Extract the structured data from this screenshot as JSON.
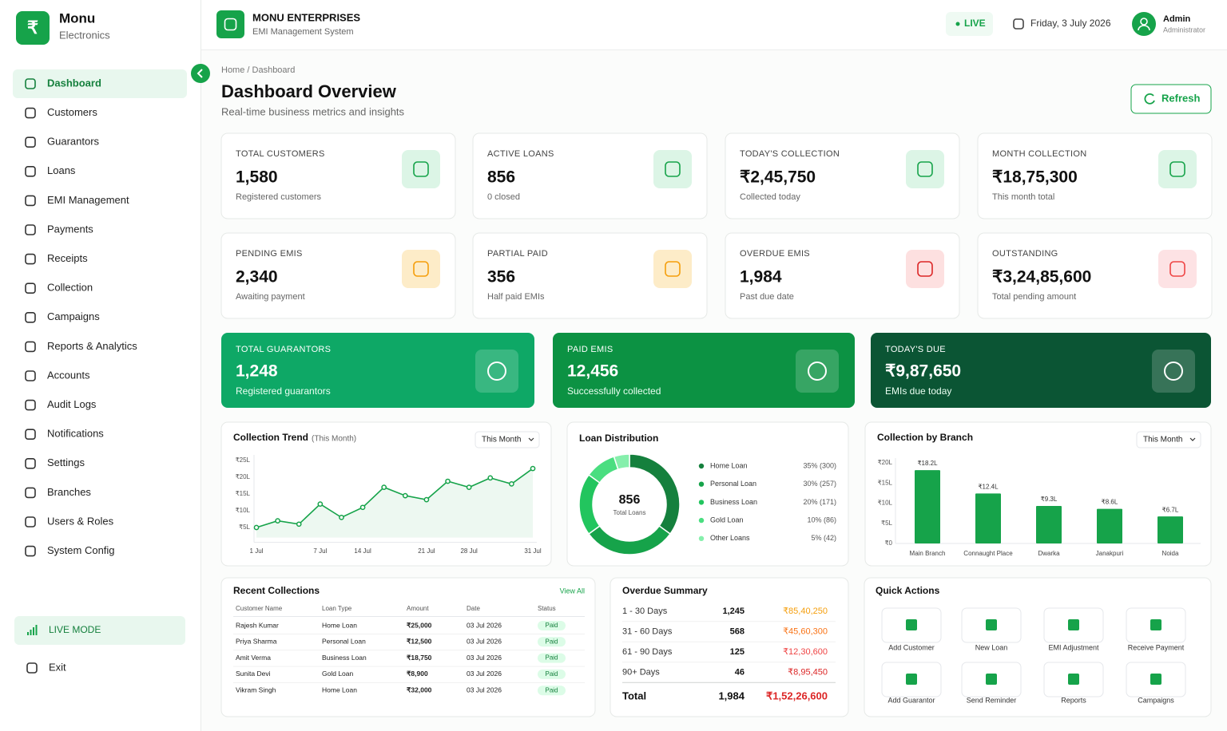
{
  "sidebar": {
    "logo_symbol": "₹",
    "brand": "Monu",
    "tagline": "Electronics",
    "nav": [
      "Dashboard",
      "Customers",
      "Guarantors",
      "Loans",
      "EMI Management",
      "Payments",
      "Receipts",
      "Collection",
      "Campaigns",
      "Reports & Analytics",
      "Accounts",
      "Audit Logs",
      "Notifications",
      "Settings",
      "Branches",
      "Users & Roles",
      "System Config"
    ],
    "active_index": 0,
    "live_mode": "LIVE MODE",
    "exit": "Exit"
  },
  "header": {
    "company": "MONU ENTERPRISES",
    "system": "EMI Management System",
    "live": "LIVE",
    "date": "Friday, 3 July 2026",
    "user": "Admin",
    "role": "Administrator"
  },
  "page": {
    "breadcrumb": "Home / Dashboard",
    "title": "Dashboard Overview",
    "subtitle": "Real-time business metrics and insights",
    "refresh": "Refresh"
  },
  "stats": [
    {
      "label": "TOTAL CUSTOMERS",
      "value": "1,580",
      "note": "Registered customers",
      "icon_color": "#16a34a",
      "icon_bg": "#dcf5e6"
    },
    {
      "label": "ACTIVE LOANS",
      "value": "856",
      "note": "0 closed",
      "icon_color": "#16a34a",
      "icon_bg": "#dcf5e6"
    },
    {
      "label": "TODAY'S COLLECTION",
      "value": "₹2,45,750",
      "note": "Collected today",
      "icon_color": "#16a34a",
      "icon_bg": "#dcf5e6"
    },
    {
      "label": "MONTH COLLECTION",
      "value": "₹18,75,300",
      "note": "This month total",
      "icon_color": "#16a34a",
      "icon_bg": "#dcf5e6"
    },
    {
      "label": "PENDING EMIS",
      "value": "2,340",
      "note": "Awaiting payment",
      "icon_color": "#f59e0b",
      "icon_bg": "#fdecc8"
    },
    {
      "label": "PARTIAL PAID",
      "value": "356",
      "note": "Half paid EMIs",
      "icon_color": "#f59e0b",
      "icon_bg": "#fdecc8"
    },
    {
      "label": "OVERDUE EMIS",
      "value": "1,984",
      "note": "Past due date",
      "icon_color": "#dc2626",
      "icon_bg": "#fde0e0"
    },
    {
      "label": "OUTSTANDING",
      "value": "₹3,24,85,600",
      "note": "Total pending amount",
      "icon_color": "#ef4444",
      "icon_bg": "#fde2e4"
    }
  ],
  "highlights": [
    {
      "label": "TOTAL GUARANTORS",
      "value": "1,248",
      "note": "Registered guarantors",
      "color": "#0ea866"
    },
    {
      "label": "PAID EMIS",
      "value": "12,456",
      "note": "Successfully collected",
      "color": "#0c9243"
    },
    {
      "label": "TODAY'S DUE",
      "value": "₹9,87,650",
      "note": "EMIs due today",
      "color": "#0b5534"
    }
  ],
  "chart_data": [
    {
      "type": "line",
      "title": "Collection Trend",
      "subtitle": "(This Month)",
      "filter": "This Month",
      "categories": [
        "1 Jul",
        null,
        null,
        "7 Jul",
        null,
        "14 Jul",
        null,
        null,
        "21 Jul",
        null,
        "28 Jul",
        null,
        null,
        "31 Jul"
      ],
      "values": [
        5,
        7,
        6,
        12,
        8,
        11,
        17,
        14.5,
        13.3,
        18.8,
        17,
        19.8,
        18,
        22.6
      ],
      "color": "#16a34a",
      "ylim": [
        2,
        25
      ],
      "yticks": [
        {
          "value": 5,
          "label": "₹5L"
        },
        {
          "value": 10,
          "label": "₹10L"
        },
        {
          "value": 15,
          "label": "₹15L"
        },
        {
          "value": 20,
          "label": "₹20L"
        },
        {
          "value": 25,
          "label": "₹25L"
        }
      ],
      "grid": false
    },
    {
      "type": "pie",
      "title": "Loan Distribution",
      "center_value": "856",
      "center_label": "Total Loans",
      "categories": [
        "Home Loan",
        "Personal Loan",
        "Business Loan",
        "Gold Loan",
        "Other Loans"
      ],
      "values": [
        35,
        30,
        20,
        10,
        5
      ],
      "value_labels": [
        "35% (300)",
        "30% (257)",
        "20% (171)",
        "10% (86)",
        "5% (42)"
      ],
      "colors": [
        "#15803d",
        "#16a34a",
        "#22c55e",
        "#4ade80",
        "#86efac"
      ]
    },
    {
      "type": "bar",
      "title": "Collection by Branch",
      "filter": "This Month",
      "categories": [
        "Main Branch",
        "Connaught Place",
        "Dwarka",
        "Janakpuri",
        "Noida"
      ],
      "values": [
        18.2,
        12.4,
        9.3,
        8.6,
        6.7
      ],
      "value_labels": [
        "₹18.2L",
        "₹12.4L",
        "₹9.3L",
        "₹8.6L",
        "₹6.7L"
      ],
      "color": "#16a34a",
      "ylim": [
        0,
        20
      ],
      "yticks": [
        {
          "value": 0,
          "label": "₹0"
        },
        {
          "value": 5,
          "label": "₹5L"
        },
        {
          "value": 10,
          "label": "₹10L"
        },
        {
          "value": 15,
          "label": "₹15L"
        },
        {
          "value": 20,
          "label": "₹20L"
        }
      ],
      "grid": false
    }
  ],
  "recent_collections": {
    "title": "Recent Collections",
    "view_all": "View All",
    "columns": [
      "Customer Name",
      "Loan Type",
      "Amount",
      "Date",
      "Status"
    ],
    "rows": [
      [
        "Rajesh Kumar",
        "Home Loan",
        "₹25,000",
        "03 Jul 2026",
        "Paid"
      ],
      [
        "Priya Sharma",
        "Personal Loan",
        "₹12,500",
        "03 Jul 2026",
        "Paid"
      ],
      [
        "Amit Verma",
        "Business Loan",
        "₹18,750",
        "03 Jul 2026",
        "Paid"
      ],
      [
        "Sunita Devi",
        "Gold Loan",
        "₹8,900",
        "03 Jul 2026",
        "Paid"
      ],
      [
        "Vikram Singh",
        "Home Loan",
        "₹32,000",
        "03 Jul 2026",
        "Paid"
      ]
    ]
  },
  "overdue_summary": {
    "title": "Overdue Summary",
    "rows": [
      {
        "range": "1 - 30 Days",
        "count": "1,245",
        "amount": "₹85,40,250",
        "color": "#f59e0b"
      },
      {
        "range": "31 - 60 Days",
        "count": "568",
        "amount": "₹45,60,300",
        "color": "#f97316"
      },
      {
        "range": "61 - 90 Days",
        "count": "125",
        "amount": "₹12,30,600",
        "color": "#ef4444"
      },
      {
        "range": "90+ Days",
        "count": "46",
        "amount": "₹8,95,450",
        "color": "#dc2626"
      }
    ],
    "total": {
      "label": "Total",
      "count": "1,984",
      "amount": "₹1,52,26,600",
      "color": "#dc2626"
    }
  },
  "quick_actions": {
    "title": "Quick Actions",
    "actions": [
      "Add Customer",
      "New Loan",
      "EMI Adjustment",
      "Receive Payment",
      "Add Guarantor",
      "Send Reminder",
      "Reports",
      "Campaigns"
    ]
  }
}
